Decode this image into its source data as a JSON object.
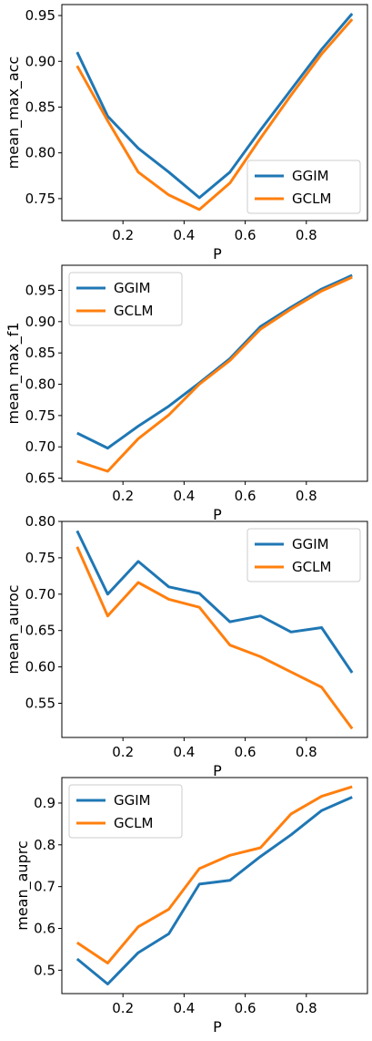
{
  "chart_data": [
    {
      "type": "line",
      "xlabel": "P",
      "ylabel": "mean_max_acc",
      "x": [
        0.05,
        0.15,
        0.25,
        0.35,
        0.45,
        0.55,
        0.65,
        0.75,
        0.85,
        0.95
      ],
      "xlim": [
        0.0,
        1.0
      ],
      "ylim": [
        0.726,
        0.962
      ],
      "xticks": [
        "0.2",
        "0.4",
        "0.6",
        "0.8"
      ],
      "xtick_values": [
        0.2,
        0.4,
        0.6,
        0.8
      ],
      "yticks": [
        "0.75",
        "0.80",
        "0.85",
        "0.90",
        "0.95"
      ],
      "ytick_values": [
        0.75,
        0.8,
        0.85,
        0.9,
        0.95
      ],
      "grid": false,
      "legend_position": "bottom-right",
      "series": [
        {
          "name": "GGIM",
          "color": "#1f77b4",
          "values": [
            0.91,
            0.84,
            0.805,
            0.779,
            0.751,
            0.779,
            0.825,
            0.869,
            0.913,
            0.952
          ]
        },
        {
          "name": "GCLM",
          "color": "#ff7f0e",
          "values": [
            0.895,
            0.835,
            0.779,
            0.754,
            0.738,
            0.767,
            0.816,
            0.863,
            0.908,
            0.946
          ]
        }
      ]
    },
    {
      "type": "line",
      "xlabel": "P",
      "ylabel": "mean_max_f1",
      "x": [
        0.05,
        0.15,
        0.25,
        0.35,
        0.45,
        0.55,
        0.65,
        0.75,
        0.85,
        0.95
      ],
      "xlim": [
        0.0,
        1.0
      ],
      "ylim": [
        0.645,
        0.99
      ],
      "xticks": [
        "0.2",
        "0.4",
        "0.6",
        "0.8"
      ],
      "xtick_values": [
        0.2,
        0.4,
        0.6,
        0.8
      ],
      "yticks": [
        "0.65",
        "0.70",
        "0.75",
        "0.80",
        "0.85",
        "0.90",
        "0.95"
      ],
      "ytick_values": [
        0.65,
        0.7,
        0.75,
        0.8,
        0.85,
        0.9,
        0.95
      ],
      "grid": false,
      "legend_position": "top-left",
      "series": [
        {
          "name": "GGIM",
          "color": "#1f77b4",
          "values": [
            0.722,
            0.698,
            0.733,
            0.765,
            0.802,
            0.841,
            0.892,
            0.923,
            0.952,
            0.974
          ]
        },
        {
          "name": "GCLM",
          "color": "#ff7f0e",
          "values": [
            0.677,
            0.661,
            0.713,
            0.751,
            0.8,
            0.838,
            0.888,
            0.92,
            0.949,
            0.971
          ]
        }
      ]
    },
    {
      "type": "line",
      "xlabel": "P",
      "ylabel": "mean_auroc",
      "x": [
        0.05,
        0.15,
        0.25,
        0.35,
        0.45,
        0.55,
        0.65,
        0.75,
        0.85,
        0.95
      ],
      "xlim": [
        0.0,
        1.0
      ],
      "ylim": [
        0.503,
        0.8
      ],
      "xticks": [
        "0.2",
        "0.4",
        "0.6",
        "0.8"
      ],
      "xtick_values": [
        0.2,
        0.4,
        0.6,
        0.8
      ],
      "yticks": [
        "0.55",
        "0.60",
        "0.65",
        "0.70",
        "0.75",
        "0.80"
      ],
      "ytick_values": [
        0.55,
        0.6,
        0.65,
        0.7,
        0.75,
        0.8
      ],
      "grid": false,
      "legend_position": "top-right",
      "series": [
        {
          "name": "GGIM",
          "color": "#1f77b4",
          "values": [
            0.787,
            0.7,
            0.745,
            0.71,
            0.701,
            0.662,
            0.67,
            0.648,
            0.654,
            0.592
          ]
        },
        {
          "name": "GCLM",
          "color": "#ff7f0e",
          "values": [
            0.765,
            0.67,
            0.716,
            0.693,
            0.682,
            0.63,
            0.614,
            0.593,
            0.572,
            0.515
          ]
        }
      ]
    },
    {
      "type": "line",
      "xlabel": "P",
      "ylabel": "mean_auprc",
      "x": [
        0.05,
        0.15,
        0.25,
        0.35,
        0.45,
        0.55,
        0.65,
        0.75,
        0.85,
        0.95
      ],
      "xlim": [
        0.0,
        1.0
      ],
      "ylim": [
        0.444,
        0.961
      ],
      "xticks": [
        "0.2",
        "0.4",
        "0.6",
        "0.8"
      ],
      "xtick_values": [
        0.2,
        0.4,
        0.6,
        0.8
      ],
      "yticks": [
        "0.5",
        "0.6",
        "0.7",
        "0.8",
        "0.9"
      ],
      "ytick_values": [
        0.5,
        0.6,
        0.7,
        0.8,
        0.9
      ],
      "grid": false,
      "legend_position": "top-left",
      "series": [
        {
          "name": "GGIM",
          "color": "#1f77b4",
          "values": [
            0.527,
            0.467,
            0.542,
            0.587,
            0.706,
            0.715,
            0.772,
            0.824,
            0.882,
            0.914
          ]
        },
        {
          "name": "GCLM",
          "color": "#ff7f0e",
          "values": [
            0.566,
            0.517,
            0.604,
            0.646,
            0.743,
            0.775,
            0.793,
            0.874,
            0.916,
            0.939
          ]
        }
      ]
    }
  ]
}
